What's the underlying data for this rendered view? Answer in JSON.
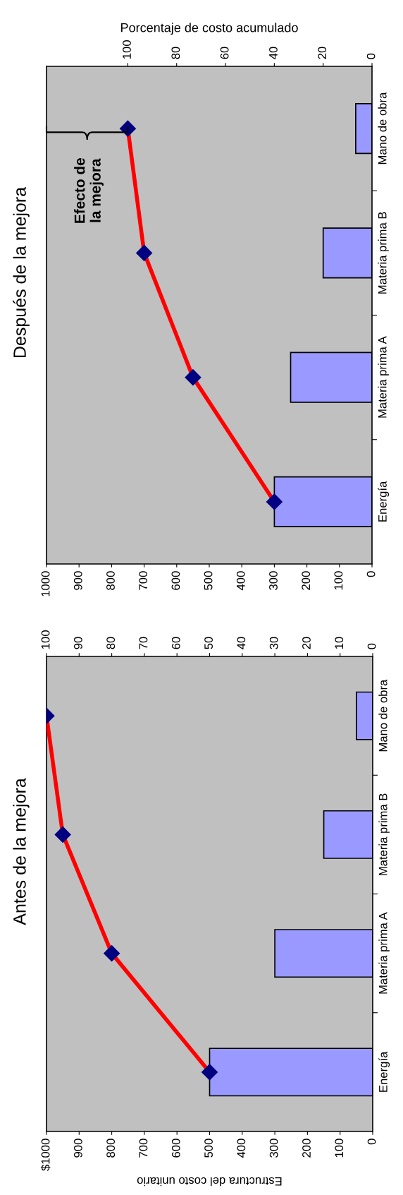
{
  "chart_data": [
    {
      "type": "bar",
      "orientation": "horizontal",
      "title": "Después de la mejora",
      "x2label": "Porcentaje de costo acumulado",
      "categories": [
        "Mano de obra",
        "Materia prima B",
        "Materia prima A",
        "Energía"
      ],
      "series": [
        {
          "type": "bar",
          "color": "#9999ff",
          "values": [
            50,
            150,
            250,
            300
          ]
        },
        {
          "type": "line",
          "axis": "x2",
          "color": "#ff0000",
          "marker": "diamond",
          "line_style": "solid",
          "values": [
            100,
            93.3,
            73.3,
            40
          ]
        }
      ],
      "xlim": [
        1000,
        0
      ],
      "xticks": [
        0,
        100,
        200,
        300,
        400,
        500,
        600,
        700,
        800,
        900,
        1000
      ],
      "x2lim": [
        133.3,
        0
      ],
      "x2ticks": [
        0,
        20,
        40,
        60,
        80,
        100
      ],
      "annotations": [
        "Efecto de\nla mejora"
      ],
      "grid": false,
      "legend": false
    },
    {
      "type": "bar",
      "orientation": "horizontal",
      "title": "Antes de la mejora",
      "xlabel": "Estructura del costo unitario",
      "categories": [
        "Mano de obra",
        "Materia prima B",
        "Materia prima A",
        "Energía"
      ],
      "series": [
        {
          "type": "bar",
          "color": "#9999ff",
          "values": [
            50,
            150,
            300,
            500
          ]
        },
        {
          "type": "line",
          "axis": "x2",
          "color": "#ff0000",
          "marker": "diamond",
          "line_style": "solid",
          "values": [
            100,
            95,
            80,
            50
          ]
        }
      ],
      "xlim": [
        1000,
        0
      ],
      "xticks": [
        0,
        100,
        200,
        300,
        400,
        500,
        600,
        700,
        800,
        900,
        {
          "value": 1000,
          "label": "$1000"
        }
      ],
      "x2lim": [
        100,
        0
      ],
      "x2ticks": [
        0,
        10,
        20,
        30,
        40,
        50,
        60,
        70,
        80,
        90,
        100
      ],
      "grid": false,
      "legend": false
    }
  ]
}
